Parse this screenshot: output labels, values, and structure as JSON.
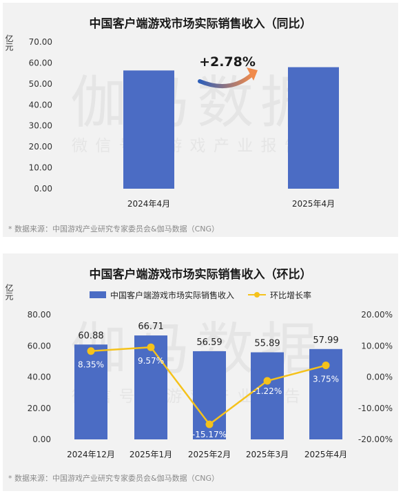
{
  "watermark": {
    "main": "伽马数据",
    "sub": "微 信 号 ： 游 戏 产 业 报 告"
  },
  "chart_data": [
    {
      "type": "bar",
      "title": "中国客户端游戏市场实际销售收入（同比）",
      "ylabel": "亿元",
      "categories": [
        "2024年4月",
        "2025年4月"
      ],
      "values": [
        56.42,
        57.99
      ],
      "ylim": [
        0,
        70
      ],
      "yticks": [
        "0.00",
        "10.00",
        "20.00",
        "30.00",
        "40.00",
        "50.00",
        "60.00",
        "70.00"
      ],
      "annotation": "+2.78%",
      "bar_color": "#4b6cc4",
      "note": "* 数据来源：中国游戏产业研究专家委员会&伽马数据（CNG）"
    },
    {
      "type": "bar+line",
      "title": "中国客户端游戏市场实际销售收入（环比）",
      "ylabel": "亿元",
      "categories": [
        "2024年12月",
        "2025年1月",
        "2025年2月",
        "2025年3月",
        "2025年4月"
      ],
      "series": [
        {
          "name": "中国客户端游戏市场实际销售收入",
          "type": "bar",
          "values": [
            60.88,
            66.71,
            56.59,
            55.89,
            57.99
          ],
          "labels": [
            "60.88",
            "66.71",
            "56.59",
            "55.89",
            "57.99"
          ],
          "color": "#4b6cc4"
        },
        {
          "name": "环比增长率",
          "type": "line",
          "values": [
            8.35,
            9.57,
            -15.17,
            -1.22,
            3.75
          ],
          "labels": [
            "8.35%",
            "9.57%",
            "-15.17%",
            "-1.22%",
            "3.75%"
          ],
          "color": "#f5c21b"
        }
      ],
      "ylim": [
        0,
        80
      ],
      "yticks": [
        "0.00",
        "20.00",
        "40.00",
        "60.00",
        "80.00"
      ],
      "y2lim": [
        -20,
        20
      ],
      "y2ticks": [
        "-20.00%",
        "-10.00%",
        "0.00%",
        "10.00%",
        "20.00%"
      ],
      "note": "* 数据来源：中国游戏产业研究专家委员会&伽马数据（CNG）"
    }
  ]
}
